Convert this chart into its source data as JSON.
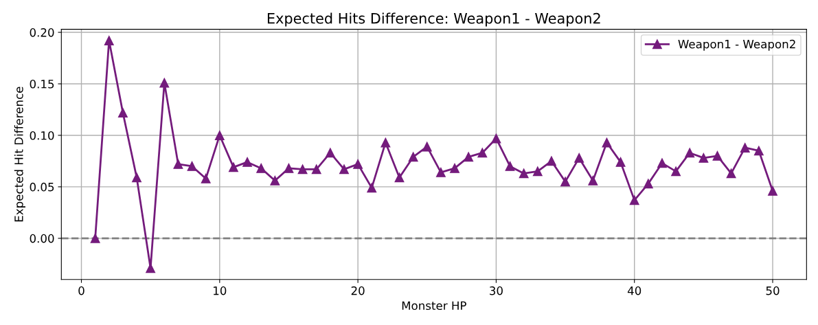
{
  "chart_data": {
    "type": "line",
    "title": "Expected Hits Difference: Weapon1 - Weapon2",
    "xlabel": "Monster HP",
    "ylabel": "Expected Hit Difference",
    "x": [
      1,
      2,
      3,
      4,
      5,
      6,
      7,
      8,
      9,
      10,
      11,
      12,
      13,
      14,
      15,
      16,
      17,
      18,
      19,
      20,
      21,
      22,
      23,
      24,
      25,
      26,
      27,
      28,
      29,
      30,
      31,
      32,
      33,
      34,
      35,
      36,
      37,
      38,
      39,
      40,
      41,
      42,
      43,
      44,
      45,
      46,
      47,
      48,
      49,
      50
    ],
    "series": [
      {
        "name": "Weapon1 - Weapon2",
        "color": "#741b7c",
        "values": [
          0.0,
          0.192,
          0.122,
          0.059,
          -0.029,
          0.151,
          0.072,
          0.07,
          0.058,
          0.1,
          0.069,
          0.074,
          0.068,
          0.056,
          0.068,
          0.067,
          0.067,
          0.083,
          0.067,
          0.072,
          0.049,
          0.093,
          0.059,
          0.079,
          0.089,
          0.064,
          0.068,
          0.079,
          0.083,
          0.097,
          0.07,
          0.063,
          0.065,
          0.075,
          0.055,
          0.078,
          0.056,
          0.093,
          0.074,
          0.037,
          0.053,
          0.073,
          0.065,
          0.083,
          0.078,
          0.08,
          0.063,
          0.088,
          0.085,
          0.046
        ]
      }
    ],
    "xlim": [
      -1.45,
      52.45
    ],
    "xticks": [
      0,
      10,
      20,
      30,
      40,
      50
    ],
    "ylim": [
      -0.04,
      0.203
    ],
    "yticks": [
      {
        "value": 0,
        "label": "0.00"
      },
      {
        "value": 0.05,
        "label": "0.05"
      },
      {
        "value": 0.1,
        "label": "0.10"
      },
      {
        "value": 0.15,
        "label": "0.15"
      },
      {
        "value": 0.2,
        "label": "0.20"
      }
    ],
    "ref_lines": [
      {
        "axis": "y",
        "value": 0,
        "color": "#808080",
        "line_style": "dashed"
      }
    ],
    "grid": true,
    "legend": "top right",
    "marker": "triangle",
    "line_style": "solid"
  }
}
